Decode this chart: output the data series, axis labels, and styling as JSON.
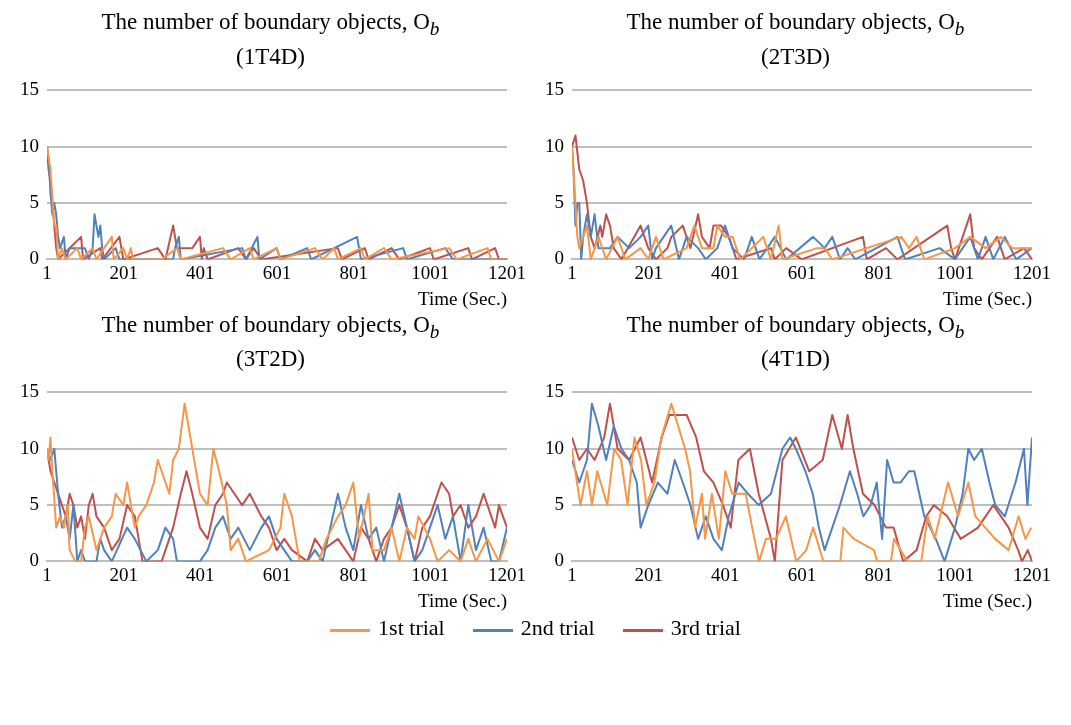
{
  "chart_data": [
    {
      "type": "line",
      "title": "The number of boundary objects, O$_{b}$",
      "subtitle": "(1T4D)",
      "legend": "bottom",
      "xlabel": "Time (Sec.)",
      "xlim": [
        1,
        1201
      ],
      "xticks": [
        1,
        201,
        401,
        601,
        801,
        1001,
        1201
      ],
      "ylim": [
        0,
        15
      ],
      "yticks": [
        0,
        5,
        10,
        15
      ],
      "grid": "y",
      "series": [
        {
          "name": "1st trial",
          "color": "#f79646",
          "x": [
            1,
            10,
            20,
            25,
            30,
            40,
            50,
            80,
            90,
            120,
            130,
            170,
            175,
            200,
            210,
            220,
            225,
            300,
            340,
            350,
            460,
            480,
            530,
            540,
            600,
            610,
            700,
            720,
            750,
            760,
            820,
            830,
            880,
            900,
            1050,
            1070,
            1150,
            1160,
            1201
          ],
          "values": [
            10,
            8,
            3,
            3,
            0,
            1,
            0,
            1,
            0,
            1,
            0,
            2,
            0,
            1,
            0,
            1,
            0,
            0,
            1,
            0,
            1,
            0,
            1,
            0,
            1,
            0,
            1,
            0,
            1,
            0,
            1,
            0,
            1,
            0,
            1,
            0,
            1,
            0,
            0
          ]
        },
        {
          "name": "2nd trial",
          "color": "#4f81bd",
          "x": [
            1,
            5,
            10,
            15,
            20,
            25,
            30,
            35,
            45,
            50,
            60,
            100,
            110,
            120,
            125,
            130,
            135,
            140,
            145,
            150,
            180,
            190,
            330,
            335,
            345,
            350,
            510,
            520,
            550,
            555,
            600,
            610,
            680,
            690,
            810,
            820,
            930,
            940,
            1040,
            1060,
            1201
          ],
          "values": [
            10,
            9,
            6,
            4,
            5,
            4,
            2,
            1,
            2,
            0,
            1,
            1,
            0,
            1,
            4,
            3,
            2,
            3,
            1,
            0,
            1,
            0,
            0,
            1,
            2,
            0,
            1,
            0,
            2,
            0,
            1,
            0,
            1,
            0,
            2,
            0,
            1,
            0,
            1,
            0,
            0
          ]
        },
        {
          "name": "3rd trial",
          "color": "#c0504d",
          "x": [
            1,
            5,
            10,
            15,
            20,
            25,
            30,
            90,
            95,
            140,
            145,
            190,
            200,
            290,
            310,
            330,
            340,
            360,
            380,
            400,
            405,
            410,
            420,
            500,
            520,
            540,
            560,
            760,
            770,
            830,
            840,
            900,
            920,
            1000,
            1010,
            1100,
            1110,
            1170,
            1180,
            1201
          ],
          "values": [
            10,
            8,
            7,
            5,
            3,
            1,
            0,
            2,
            0,
            1,
            0,
            2,
            0,
            1,
            0,
            3,
            1,
            1,
            1,
            2,
            0,
            1,
            0,
            1,
            0,
            1,
            0,
            1,
            0,
            1,
            0,
            1,
            0,
            1,
            0,
            1,
            0,
            1,
            0,
            0
          ]
        }
      ]
    },
    {
      "type": "line",
      "title": "The number of boundary objects, O$_{b}$",
      "subtitle": "(2T3D)",
      "xlabel": "Time (Sec.)",
      "xlim": [
        1,
        1201
      ],
      "xticks": [
        1,
        201,
        401,
        601,
        801,
        1001,
        1201
      ],
      "ylim": [
        0,
        15
      ],
      "yticks": [
        0,
        5,
        10,
        15
      ],
      "grid": "y",
      "series": [
        {
          "color": "#f79646",
          "x": [
            1,
            10,
            15,
            20,
            40,
            50,
            70,
            90,
            120,
            140,
            180,
            200,
            220,
            240,
            300,
            320,
            340,
            370,
            380,
            400,
            420,
            440,
            500,
            520,
            540,
            550,
            640,
            660,
            680,
            860,
            880,
            900,
            920,
            1000,
            1040,
            1080,
            1120,
            1150,
            1201
          ],
          "values": [
            10,
            5,
            2,
            1,
            3,
            0,
            2,
            0,
            2,
            0,
            1,
            0,
            2,
            0,
            1,
            3,
            1,
            1,
            3,
            2,
            2,
            0,
            2,
            0,
            3,
            0,
            1,
            1,
            0,
            2,
            1,
            2,
            0,
            1,
            2,
            1,
            2,
            1,
            1
          ]
        },
        {
          "color": "#4f81bd",
          "x": [
            1,
            5,
            10,
            15,
            20,
            25,
            30,
            40,
            50,
            60,
            70,
            100,
            120,
            150,
            180,
            200,
            210,
            220,
            260,
            280,
            300,
            330,
            350,
            380,
            400,
            420,
            450,
            470,
            490,
            530,
            560,
            630,
            660,
            680,
            700,
            720,
            740,
            850,
            870,
            960,
            1000,
            1040,
            1060,
            1080,
            1100,
            1130,
            1160,
            1201
          ],
          "values": [
            10,
            8,
            3,
            5,
            5,
            0,
            2,
            4,
            2,
            4,
            1,
            1,
            2,
            1,
            2,
            3,
            0,
            1,
            3,
            0,
            2,
            1,
            0,
            1,
            3,
            1,
            0,
            2,
            0,
            2,
            0,
            2,
            1,
            2,
            0,
            1,
            0,
            2,
            0,
            1,
            0,
            2,
            0,
            2,
            0,
            2,
            0,
            1
          ]
        },
        {
          "color": "#c0504d",
          "x": [
            1,
            10,
            20,
            30,
            40,
            50,
            60,
            75,
            80,
            90,
            100,
            110,
            130,
            180,
            200,
            220,
            250,
            260,
            290,
            310,
            330,
            340,
            360,
            370,
            390,
            410,
            430,
            520,
            530,
            560,
            600,
            760,
            770,
            820,
            850,
            980,
            990,
            1000,
            1040,
            1050,
            1070,
            1110,
            1130,
            1180,
            1201
          ],
          "values": [
            10,
            11,
            8,
            7,
            5,
            2,
            1,
            3,
            2,
            4,
            3,
            1,
            0,
            3,
            1,
            0,
            1,
            2,
            3,
            1,
            4,
            2,
            1,
            3,
            3,
            2,
            0,
            1,
            0,
            1,
            0,
            2,
            0,
            1,
            0,
            3,
            1,
            0,
            4,
            1,
            0,
            2,
            0,
            1,
            0
          ]
        }
      ]
    },
    {
      "type": "line",
      "title": "The number of boundary objects, O$_{b}$",
      "subtitle": "(3T2D)",
      "xlabel": "Time (Sec.)",
      "xlim": [
        1,
        1201
      ],
      "xticks": [
        1,
        201,
        401,
        601,
        801,
        1001,
        1201
      ],
      "ylim": [
        0,
        15
      ],
      "yticks": [
        0,
        5,
        10,
        15
      ],
      "grid": "y",
      "series": [
        {
          "color": "#f79646",
          "x": [
            1,
            5,
            10,
            15,
            25,
            35,
            45,
            55,
            60,
            75,
            90,
            100,
            110,
            130,
            150,
            170,
            180,
            200,
            210,
            230,
            240,
            260,
            280,
            290,
            300,
            310,
            320,
            330,
            345,
            360,
            375,
            390,
            400,
            420,
            435,
            450,
            470,
            480,
            500,
            520,
            580,
            610,
            620,
            640,
            660,
            710,
            730,
            760,
            780,
            800,
            815,
            840,
            850,
            880,
            900,
            920,
            940,
            960,
            970,
            1000,
            1020,
            1050,
            1080,
            1100,
            1120,
            1150,
            1180,
            1201
          ],
          "values": [
            10,
            9,
            11,
            8,
            3,
            4,
            3,
            5,
            1,
            0,
            0,
            3,
            4,
            1,
            3,
            4,
            6,
            5,
            7,
            3,
            4,
            5,
            7,
            9,
            8,
            7,
            6,
            9,
            10,
            14,
            11,
            8,
            6,
            5,
            10,
            8,
            5,
            1,
            2,
            0,
            1,
            3,
            6,
            4,
            0,
            0,
            2,
            4,
            5,
            7,
            2,
            6,
            1,
            1,
            3,
            0,
            3,
            2,
            4,
            2,
            0,
            1,
            0,
            2,
            0,
            2,
            0,
            2
          ]
        },
        {
          "color": "#4f81bd",
          "x": [
            1,
            10,
            20,
            30,
            40,
            50,
            60,
            70,
            80,
            90,
            100,
            130,
            140,
            150,
            170,
            210,
            230,
            260,
            290,
            300,
            310,
            330,
            340,
            370,
            400,
            420,
            440,
            460,
            480,
            500,
            530,
            560,
            580,
            600,
            620,
            640,
            680,
            700,
            720,
            740,
            760,
            780,
            800,
            820,
            840,
            860,
            880,
            900,
            920,
            940,
            960,
            980,
            1000,
            1020,
            1040,
            1060,
            1080,
            1100,
            1120,
            1140,
            1160,
            1180,
            1201
          ],
          "values": [
            10,
            9,
            10,
            6,
            3,
            4,
            2,
            5,
            0,
            1,
            0,
            0,
            2,
            1,
            0,
            3,
            2,
            0,
            1,
            2,
            3,
            2,
            0,
            0,
            0,
            1,
            3,
            4,
            2,
            3,
            1,
            3,
            4,
            2,
            1,
            0,
            0,
            1,
            0,
            3,
            6,
            3,
            1,
            5,
            2,
            3,
            0,
            3,
            6,
            3,
            0,
            1,
            3,
            5,
            2,
            4,
            0,
            5,
            1,
            3,
            0,
            0,
            3
          ]
        },
        {
          "color": "#c0504d",
          "x": [
            1,
            10,
            20,
            30,
            40,
            50,
            60,
            70,
            80,
            90,
            100,
            110,
            120,
            130,
            150,
            170,
            190,
            210,
            230,
            250,
            300,
            330,
            350,
            365,
            380,
            400,
            420,
            440,
            460,
            470,
            490,
            510,
            530,
            560,
            580,
            600,
            620,
            640,
            680,
            700,
            720,
            760,
            780,
            800,
            820,
            840,
            860,
            880,
            900,
            920,
            940,
            960,
            980,
            1000,
            1020,
            1030,
            1050,
            1060,
            1080,
            1100,
            1120,
            1140,
            1160,
            1170,
            1180,
            1201
          ],
          "values": [
            10,
            8,
            7,
            6,
            5,
            4,
            6,
            5,
            3,
            4,
            2,
            5,
            6,
            4,
            3,
            1,
            2,
            5,
            4,
            0,
            0,
            3,
            6,
            8,
            6,
            3,
            2,
            5,
            6,
            7,
            6,
            5,
            6,
            4,
            3,
            1,
            2,
            1,
            0,
            2,
            1,
            2,
            1,
            0,
            3,
            2,
            0,
            2,
            3,
            5,
            3,
            0,
            3,
            4,
            6,
            7,
            6,
            4,
            5,
            3,
            4,
            6,
            4,
            3,
            5,
            3
          ]
        }
      ]
    },
    {
      "type": "line",
      "title": "The number of boundary objects, O$_{b}$",
      "subtitle": "(4T1D)",
      "xlabel": "Time (Sec.)",
      "xlim": [
        1,
        1201
      ],
      "xticks": [
        1,
        201,
        401,
        601,
        801,
        1001,
        1201
      ],
      "ylim": [
        0,
        15
      ],
      "yticks": [
        0,
        5,
        10,
        15
      ],
      "grid": "y",
      "series": [
        {
          "color": "#f79646",
          "x": [
            1,
            14,
            23,
            40,
            53,
            67,
            93,
            111,
            129,
            146,
            164,
            181,
            195,
            216,
            234,
            260,
            278,
            296,
            309,
            322,
            340,
            348,
            366,
            384,
            401,
            419,
            454,
            471,
            489,
            507,
            533,
            559,
            586,
            612,
            630,
            657,
            701,
            709,
            736,
            789,
            797,
            833,
            841,
            876,
            912,
            929,
            947,
            982,
            1008,
            1035,
            1053,
            1079,
            1105,
            1140,
            1166,
            1184,
            1199
          ],
          "values": [
            10,
            7,
            5,
            8,
            5,
            8,
            5,
            10,
            9,
            5,
            11,
            9,
            5,
            7,
            11,
            14,
            12,
            10,
            8,
            3,
            6,
            2,
            6,
            2,
            8,
            6,
            6,
            3,
            0,
            2,
            2,
            4,
            0,
            1,
            3,
            0,
            0,
            3,
            2,
            1,
            0,
            0,
            2,
            0,
            0,
            4,
            2,
            7,
            4,
            7,
            4,
            3,
            2,
            1,
            4,
            2,
            3
          ]
        },
        {
          "color": "#4f81bd",
          "x": [
            1,
            20,
            40,
            53,
            70,
            90,
            110,
            130,
            150,
            170,
            180,
            200,
            225,
            250,
            269,
            290,
            310,
            330,
            350,
            370,
            392,
            410,
            436,
            460,
            488,
            520,
            550,
            570,
            585,
            610,
            629,
            645,
            660,
            680,
            700,
            726,
            745,
            761,
            780,
            796,
            810,
            823,
            840,
            858,
            880,
            894,
            920,
            950,
            973,
            1000,
            1020,
            1035,
            1050,
            1070,
            1090,
            1105,
            1130,
            1158,
            1180,
            1189,
            1201
          ],
          "values": [
            9,
            7,
            9,
            14,
            12,
            9,
            12,
            10,
            9,
            7,
            3,
            5,
            7,
            6,
            9,
            7,
            5,
            2,
            4,
            2,
            1,
            4,
            7,
            6,
            5,
            6,
            10,
            11,
            10,
            8,
            6,
            3,
            1,
            3,
            5,
            8,
            6,
            4,
            5,
            7,
            2,
            9,
            7,
            7,
            8,
            8,
            4,
            2,
            0,
            3,
            6,
            10,
            9,
            10,
            7,
            5,
            4,
            7,
            10,
            5,
            11
          ]
        },
        {
          "color": "#c0504d",
          "x": [
            1,
            20,
            40,
            60,
            85,
            100,
            120,
            150,
            180,
            210,
            235,
            255,
            300,
            325,
            345,
            370,
            395,
            415,
            435,
            465,
            488,
            520,
            530,
            550,
            585,
            620,
            655,
            680,
            705,
            720,
            735,
            760,
            790,
            820,
            840,
            865,
            900,
            925,
            945,
            980,
            1015,
            1060,
            1100,
            1140,
            1165,
            1175,
            1190,
            1201
          ],
          "values": [
            11,
            9,
            10,
            9,
            11,
            14,
            10,
            9,
            11,
            7,
            11,
            13,
            13,
            11,
            8,
            7,
            5,
            3,
            9,
            10,
            6,
            2,
            0,
            9,
            11,
            8,
            9,
            13,
            10,
            13,
            10,
            6,
            5,
            3,
            3,
            0,
            1,
            4,
            5,
            4,
            2,
            3,
            5,
            3,
            1,
            0,
            1,
            0
          ]
        }
      ]
    }
  ]
}
